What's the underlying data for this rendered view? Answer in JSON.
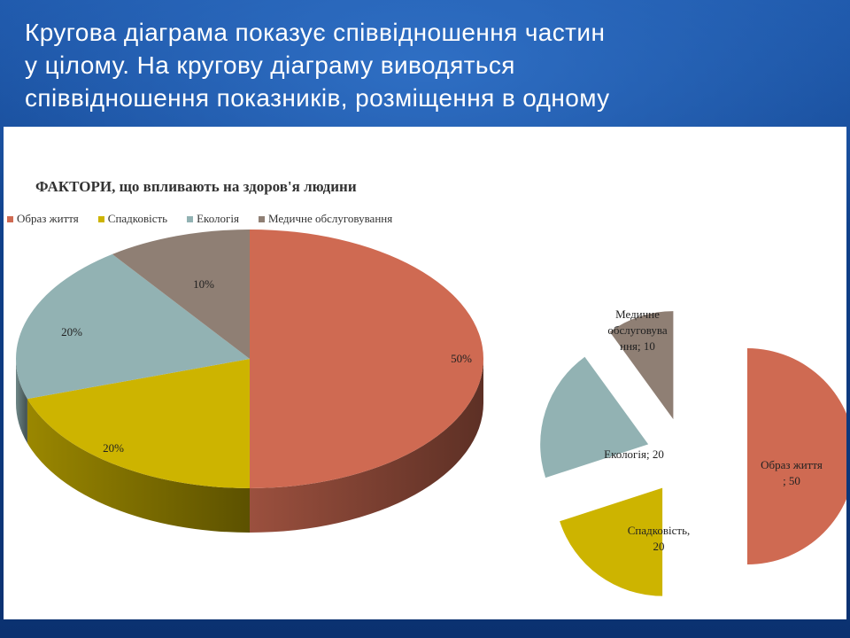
{
  "header": {
    "lines": [
      "Кругова діаграма показує співвідношення частин",
      "у цілому. На кругову діаграму виводяться",
      "співвідношення показників, розміщення в одному"
    ]
  },
  "chart_data": [
    {
      "type": "pie",
      "title": "ФАКТОРИ, що впливають на здоров'я людини",
      "legend_placement": "top",
      "categories": [
        "Образ життя",
        "Спадковість",
        "Екологія",
        "Медичне обслуговування"
      ],
      "values": [
        50,
        20,
        20,
        10
      ],
      "data_labels": [
        "50%",
        "20%",
        "20%",
        "10%"
      ],
      "colors": [
        "#cf6a52",
        "#cdb400",
        "#92b2b3",
        "#8f7f74"
      ]
    },
    {
      "type": "pie",
      "exploded": true,
      "categories": [
        "Образ життя",
        "Спадковість",
        "Екологія",
        "Медичне обслуговування"
      ],
      "values": [
        50,
        20,
        20,
        10
      ],
      "data_labels": [
        [
          "Образ життя",
          "; 50"
        ],
        [
          "Спадковість,",
          "20"
        ],
        [
          "Екологія; 20"
        ],
        [
          "Медичне",
          "обслуговува",
          "ння; 10"
        ]
      ],
      "colors": [
        "#cf6a52",
        "#cdb400",
        "#92b2b3",
        "#8f7f74"
      ]
    }
  ]
}
